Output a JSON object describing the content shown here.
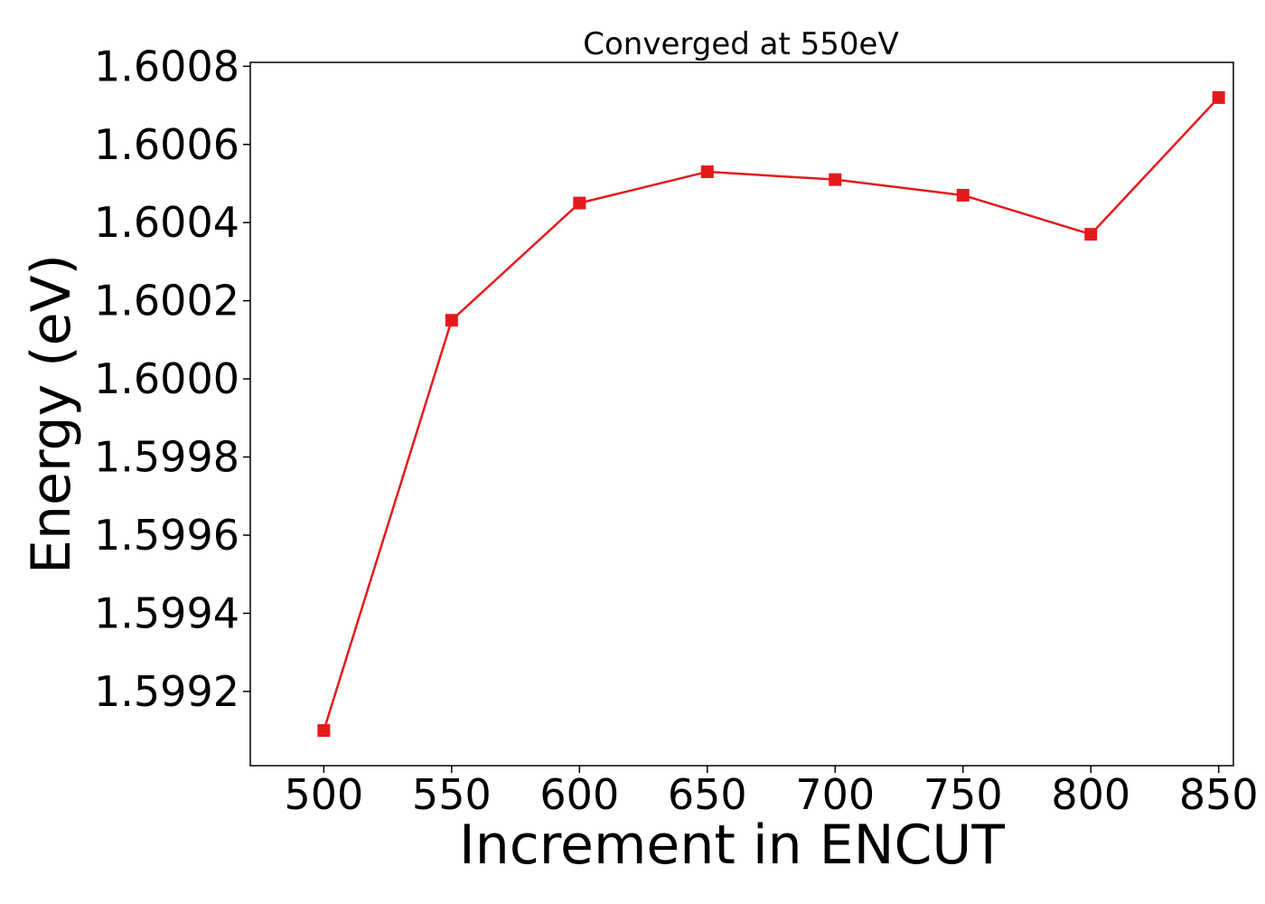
{
  "chart_data": {
    "type": "line",
    "title": "Converged at 550eV",
    "xlabel": "Increment in ENCUT",
    "ylabel": "Energy (eV)",
    "x": [
      500,
      550,
      600,
      650,
      700,
      750,
      800,
      850
    ],
    "series": [
      {
        "values": [
          1.5991,
          1.60015,
          1.60045,
          1.60053,
          1.60051,
          1.60047,
          1.60037,
          1.60072
        ],
        "color": "#e31a1c",
        "marker": "square"
      }
    ],
    "xticks": [
      500,
      550,
      600,
      650,
      700,
      750,
      800,
      850
    ],
    "xtick_labels": [
      "500",
      "550",
      "600",
      "650",
      "700",
      "750",
      "800",
      "850"
    ],
    "yticks": [
      1.5992,
      1.5994,
      1.5996,
      1.5998,
      1.6,
      1.6002,
      1.6004,
      1.6006,
      1.6008
    ],
    "ytick_labels": [
      "1.5992",
      "1.5994",
      "1.5996",
      "1.5998",
      "1.6000",
      "1.6002",
      "1.6004",
      "1.6006",
      "1.6008"
    ],
    "xlim": [
      471.25,
      855.75
    ],
    "ylim": [
      1.59901,
      1.60081
    ],
    "grid": false,
    "legend": "none"
  }
}
